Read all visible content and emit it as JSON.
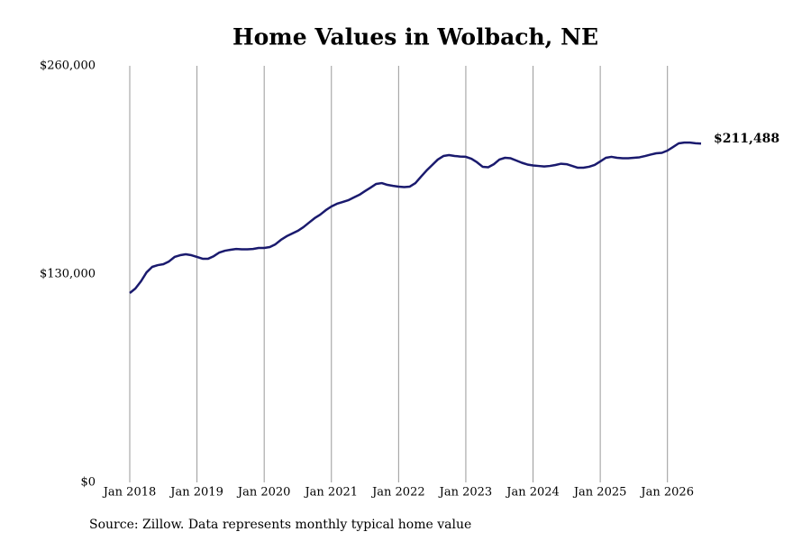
{
  "chart_data": {
    "type": "line",
    "title": "Home Values in Wolbach, NE",
    "source": "Source: Zillow. Data represents monthly typical home value",
    "color": "#1a1a6e",
    "x": [
      "2018-01",
      "2018-02",
      "2018-03",
      "2018-04",
      "2018-05",
      "2018-06",
      "2018-07",
      "2018-08",
      "2018-09",
      "2018-10",
      "2018-11",
      "2018-12",
      "2019-01",
      "2019-02",
      "2019-03",
      "2019-04",
      "2019-05",
      "2019-06",
      "2019-07",
      "2019-08",
      "2019-09",
      "2019-10",
      "2019-11",
      "2019-12",
      "2020-01",
      "2020-02",
      "2020-03",
      "2020-04",
      "2020-05",
      "2020-06",
      "2020-07",
      "2020-08",
      "2020-09",
      "2020-10",
      "2020-11",
      "2020-12",
      "2021-01",
      "2021-02",
      "2021-03",
      "2021-04",
      "2021-05",
      "2021-06",
      "2021-07",
      "2021-08",
      "2021-09",
      "2021-10",
      "2021-11",
      "2021-12",
      "2022-01",
      "2022-02",
      "2022-03",
      "2022-04",
      "2022-05",
      "2022-06",
      "2022-07",
      "2022-08",
      "2022-09",
      "2022-10",
      "2022-11",
      "2022-12",
      "2023-01",
      "2023-02",
      "2023-03",
      "2023-04",
      "2023-05",
      "2023-06",
      "2023-07",
      "2023-08",
      "2023-09",
      "2023-10",
      "2023-11",
      "2023-12",
      "2024-01",
      "2024-02",
      "2024-03",
      "2024-04",
      "2024-05",
      "2024-06",
      "2024-07",
      "2024-08",
      "2024-09",
      "2024-10",
      "2024-11",
      "2024-12",
      "2025-01",
      "2025-02",
      "2025-03",
      "2025-04",
      "2025-05",
      "2025-06",
      "2025-07",
      "2025-08",
      "2025-09",
      "2025-10",
      "2025-11",
      "2025-12",
      "2026-01",
      "2026-02",
      "2026-03",
      "2026-04",
      "2026-05",
      "2026-06",
      "2026-07"
    ],
    "values": [
      118200,
      121000,
      125500,
      131100,
      134500,
      135600,
      136200,
      137900,
      140700,
      141800,
      142400,
      141800,
      140700,
      139600,
      139600,
      141200,
      143500,
      144600,
      145200,
      145700,
      145500,
      145500,
      145700,
      146300,
      146300,
      146900,
      148600,
      151400,
      153600,
      155300,
      157000,
      159300,
      162100,
      164900,
      167100,
      169900,
      172200,
      173900,
      175000,
      176100,
      177800,
      179500,
      181800,
      184000,
      186300,
      186800,
      185700,
      185100,
      184600,
      184300,
      184600,
      186800,
      190800,
      194700,
      198100,
      201500,
      203700,
      204300,
      203700,
      203400,
      203200,
      202000,
      199800,
      197000,
      196700,
      198600,
      201500,
      202600,
      202300,
      200900,
      199500,
      198400,
      197800,
      197500,
      197200,
      197500,
      198100,
      198900,
      198600,
      197500,
      196400,
      196400,
      197000,
      198100,
      200300,
      202600,
      203200,
      202600,
      202300,
      202300,
      202600,
      202900,
      203700,
      204600,
      205400,
      205700,
      207100,
      209300,
      211600,
      212100,
      212100,
      211700,
      211488
    ],
    "value_labels": [
      null,
      null,
      null,
      null,
      null,
      null,
      null,
      null,
      null,
      null,
      null,
      null,
      null,
      null,
      null,
      null,
      null,
      null,
      null,
      null,
      null,
      null,
      null,
      null,
      null,
      null,
      null,
      null,
      null,
      null,
      null,
      null,
      null,
      null,
      null,
      null,
      null,
      null,
      null,
      null,
      null,
      null,
      null,
      null,
      null,
      null,
      null,
      null,
      null,
      null,
      null,
      null,
      null,
      null,
      null,
      null,
      null,
      null,
      null,
      null,
      null,
      null,
      null,
      null,
      null,
      null,
      null,
      null,
      null,
      null,
      null,
      null,
      null,
      null,
      null,
      null,
      null,
      null,
      null,
      null,
      null,
      null,
      null,
      null,
      null,
      null,
      null,
      null,
      null,
      null,
      null,
      null,
      null,
      null,
      null,
      null,
      null,
      null,
      null,
      null,
      null,
      null,
      "$211,488"
    ],
    "xlim": [
      "2018-01",
      "2026-07"
    ],
    "xticks": [
      {
        "value": "2018-01",
        "label": "Jan 2018"
      },
      {
        "value": "2019-01",
        "label": "Jan 2019"
      },
      {
        "value": "2020-01",
        "label": "Jan 2020"
      },
      {
        "value": "2021-01",
        "label": "Jan 2021"
      },
      {
        "value": "2022-01",
        "label": "Jan 2022"
      },
      {
        "value": "2023-01",
        "label": "Jan 2023"
      },
      {
        "value": "2024-01",
        "label": "Jan 2024"
      },
      {
        "value": "2025-01",
        "label": "Jan 2025"
      },
      {
        "value": "2026-01",
        "label": "Jan 2026"
      }
    ],
    "ylim": [
      0,
      260000
    ],
    "yticks": [
      {
        "value": 0,
        "label": "$0"
      },
      {
        "value": 130000,
        "label": "$130,000"
      },
      {
        "value": 260000,
        "label": "$260,000"
      }
    ],
    "grid": true
  }
}
